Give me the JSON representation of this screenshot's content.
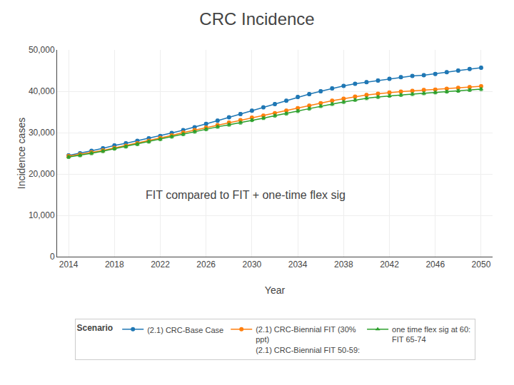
{
  "chart_data": {
    "type": "line",
    "title": "CRC Incidence",
    "subtitle": "FIT compared to FIT + one-time flex sig",
    "xlabel": "Year",
    "ylabel": "Incidence cases",
    "legend_title": "Scenario",
    "legend": "bottom",
    "grid": true,
    "x": [
      2014,
      2015,
      2016,
      2017,
      2018,
      2019,
      2020,
      2021,
      2022,
      2023,
      2024,
      2025,
      2026,
      2027,
      2028,
      2029,
      2030,
      2031,
      2032,
      2033,
      2034,
      2035,
      2036,
      2037,
      2038,
      2039,
      2040,
      2041,
      2042,
      2043,
      2044,
      2045,
      2046,
      2047,
      2048,
      2049,
      2050
    ],
    "xlim": [
      2013,
      2051
    ],
    "xticks": [
      2014,
      2018,
      2022,
      2026,
      2030,
      2034,
      2038,
      2042,
      2046,
      2050
    ],
    "ylim": [
      0,
      50000
    ],
    "yticks": [
      0,
      {
        "value": 10000,
        "label": "10,000"
      },
      {
        "value": 20000,
        "label": "20,000"
      },
      {
        "value": 30000,
        "label": "30,000"
      },
      {
        "value": 40000,
        "label": "40,000"
      },
      {
        "value": 50000,
        "label": "50,000"
      }
    ],
    "series": [
      {
        "name": "(2.1) CRC-Base Case",
        "marker": "circle",
        "line_style": "solid",
        "values": [
          24500,
          25000,
          25600,
          26200,
          26900,
          27400,
          28000,
          28600,
          29200,
          29900,
          30600,
          31300,
          32100,
          32900,
          33700,
          34500,
          35300,
          36100,
          36900,
          37700,
          38600,
          39300,
          40000,
          40700,
          41300,
          41800,
          42200,
          42600,
          43000,
          43400,
          43700,
          43900,
          44200,
          44600,
          45000,
          45400,
          45700
        ],
        "errors": [
          350,
          350,
          350,
          350,
          350,
          350,
          350,
          350,
          350,
          350,
          350,
          350,
          350,
          350,
          350,
          350,
          350,
          350,
          350,
          350,
          350,
          350,
          350,
          350,
          350,
          350,
          350,
          350,
          350,
          350,
          350,
          350,
          350,
          350,
          350,
          350,
          350
        ]
      },
      {
        "name": "(2.1) CRC-Biennial FIT (30%\nppt)\n(2.1) CRC-Biennial FIT 50-59:",
        "marker": "circle",
        "line_style": "solid",
        "values": [
          24300,
          24700,
          25200,
          25700,
          26300,
          26800,
          27400,
          28000,
          28700,
          29300,
          30000,
          30600,
          31200,
          31800,
          32400,
          33000,
          33600,
          34100,
          34700,
          35300,
          35900,
          36500,
          37100,
          37700,
          38200,
          38700,
          39100,
          39400,
          39700,
          39900,
          40100,
          40300,
          40400,
          40600,
          40800,
          41000,
          41200
        ],
        "errors": [
          350,
          350,
          350,
          350,
          350,
          350,
          350,
          350,
          350,
          350,
          350,
          350,
          350,
          350,
          350,
          350,
          350,
          350,
          350,
          350,
          350,
          350,
          350,
          350,
          350,
          350,
          350,
          350,
          350,
          350,
          350,
          350,
          350,
          350,
          350,
          350,
          350
        ]
      },
      {
        "name": "one time flex sig at 60:\nFIT 65-74",
        "marker": "triangle-up",
        "line_style": "solid",
        "values": [
          24100,
          24500,
          25000,
          25500,
          26100,
          26600,
          27200,
          27800,
          28400,
          29000,
          29600,
          30200,
          30800,
          31400,
          31900,
          32400,
          33000,
          33500,
          34100,
          34600,
          35200,
          35800,
          36400,
          36900,
          37400,
          37900,
          38300,
          38600,
          38900,
          39100,
          39300,
          39500,
          39700,
          39900,
          40100,
          40300,
          40500
        ],
        "errors": [
          350,
          350,
          350,
          350,
          350,
          350,
          350,
          350,
          350,
          350,
          350,
          350,
          350,
          350,
          350,
          350,
          350,
          350,
          350,
          350,
          350,
          350,
          350,
          350,
          350,
          350,
          350,
          350,
          350,
          350,
          350,
          350,
          350,
          350,
          350,
          350,
          350
        ]
      }
    ]
  }
}
